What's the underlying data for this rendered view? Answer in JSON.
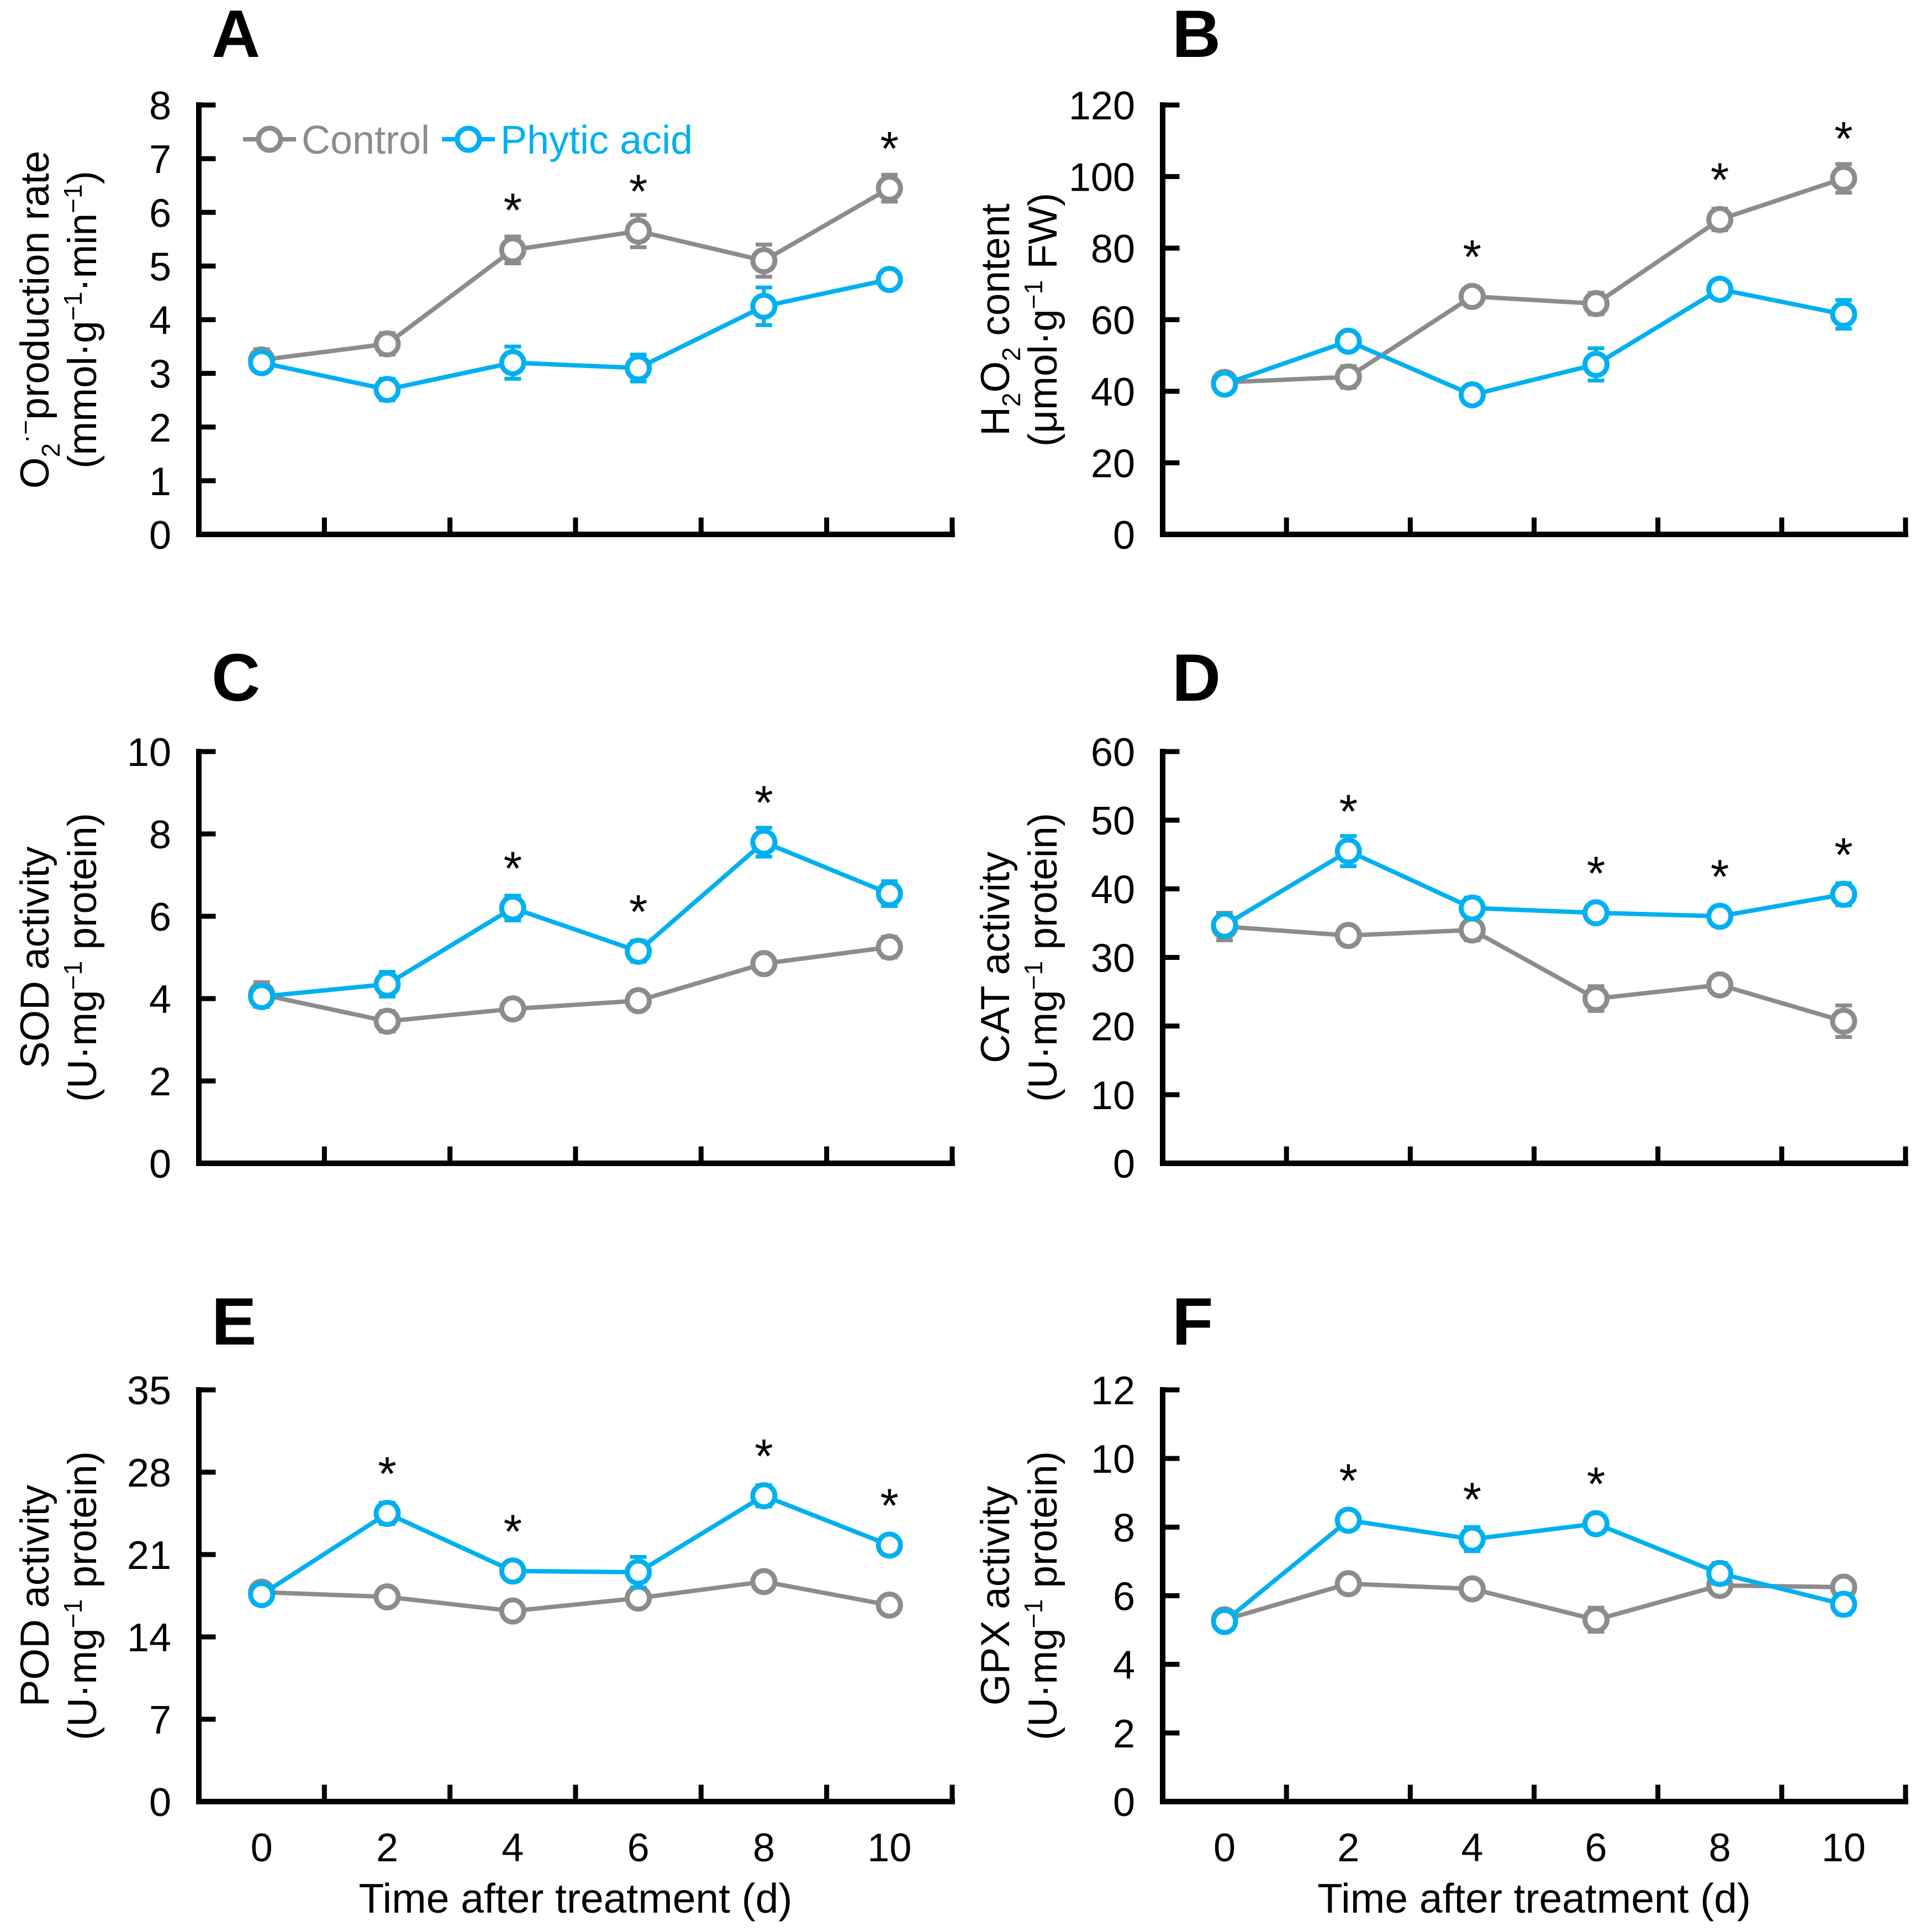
{
  "colors": {
    "control": "#8C8C8C",
    "phytic": "#00B0F0",
    "axis": "#000000",
    "background": "#FFFFFF",
    "asterisk": "#000000"
  },
  "legend": {
    "location": "panel-A-top",
    "items": [
      {
        "label": "Control",
        "series": "control"
      },
      {
        "label": "Phytic acid",
        "series": "phytic"
      }
    ]
  },
  "x_axis": {
    "label": "Time after treatment (d)",
    "categories": [
      "0",
      "2",
      "4",
      "6",
      "8",
      "10"
    ]
  },
  "chart_data": [
    {
      "type": "line",
      "panel": "A",
      "label": "A",
      "ylabel_rich": [
        [
          {
            "t": "O"
          },
          {
            "t": "2",
            "sub": true
          },
          {
            "t": "·−",
            "sup": true
          },
          {
            "t": "production rate"
          }
        ],
        [
          {
            "t": "(mmol·g"
          },
          {
            "t": "−1",
            "sup": true
          },
          {
            "t": "·min"
          },
          {
            "t": "−1",
            "sup": true
          },
          {
            "t": ")"
          }
        ]
      ],
      "ylim": [
        0,
        8
      ],
      "yticks": [
        0,
        1,
        2,
        3,
        4,
        5,
        6,
        7,
        8
      ],
      "x": [
        0,
        2,
        4,
        6,
        8,
        10
      ],
      "series": [
        {
          "name": "Control",
          "key": "control",
          "values": [
            3.25,
            3.55,
            5.3,
            5.65,
            5.1,
            6.45
          ],
          "errors": [
            0.2,
            0.2,
            0.25,
            0.3,
            0.3,
            0.25
          ]
        },
        {
          "name": "Phytic acid",
          "key": "phytic",
          "values": [
            3.2,
            2.7,
            3.2,
            3.1,
            4.25,
            4.75
          ],
          "errors": [
            0.15,
            0.2,
            0.3,
            0.25,
            0.35,
            0.15
          ]
        }
      ],
      "significance_asterisks": [
        {
          "x": 4,
          "above_series": "control"
        },
        {
          "x": 6,
          "above_series": "control"
        },
        {
          "x": 10,
          "above_series": "control"
        }
      ],
      "show_x_tick_labels": false,
      "show_legend": true
    },
    {
      "type": "line",
      "panel": "B",
      "label": "B",
      "ylabel_rich": [
        [
          {
            "t": "H"
          },
          {
            "t": "2",
            "sub": true
          },
          {
            "t": "O"
          },
          {
            "t": "2",
            "sub": true
          },
          {
            "t": " content"
          }
        ],
        [
          {
            "t": "(μmol·g"
          },
          {
            "t": "−1",
            "sup": true
          },
          {
            "t": " FW)"
          }
        ]
      ],
      "ylim": [
        0,
        120
      ],
      "yticks": [
        0,
        20,
        40,
        60,
        80,
        100,
        120
      ],
      "x": [
        0,
        2,
        4,
        6,
        8,
        10
      ],
      "series": [
        {
          "name": "Control",
          "key": "control",
          "values": [
            42.5,
            44,
            66.5,
            64.5,
            88,
            99.5
          ],
          "errors": [
            1.5,
            3,
            2,
            3,
            3,
            4
          ]
        },
        {
          "name": "Phytic acid",
          "key": "phytic",
          "values": [
            42,
            54,
            39,
            47.5,
            68.5,
            61.5
          ],
          "errors": [
            2,
            1.5,
            2,
            4.5,
            1.5,
            4
          ]
        }
      ],
      "significance_asterisks": [
        {
          "x": 4,
          "above_series": "control"
        },
        {
          "x": 8,
          "above_series": "control"
        },
        {
          "x": 10,
          "above_series": "control"
        }
      ],
      "show_x_tick_labels": false,
      "show_legend": false
    },
    {
      "type": "line",
      "panel": "C",
      "label": "C",
      "ylabel_rich": [
        [
          {
            "t": "SOD activity"
          }
        ],
        [
          {
            "t": "(U·mg"
          },
          {
            "t": "−1",
            "sup": true
          },
          {
            "t": " protein)"
          }
        ]
      ],
      "ylim": [
        0,
        10
      ],
      "yticks": [
        0,
        2,
        4,
        6,
        8,
        10
      ],
      "x": [
        0,
        2,
        4,
        6,
        8,
        10
      ],
      "series": [
        {
          "name": "Control",
          "key": "control",
          "values": [
            4.1,
            3.45,
            3.75,
            3.95,
            4.85,
            5.25
          ],
          "errors": [
            0.3,
            0.25,
            0.15,
            0.15,
            0.2,
            0.25
          ]
        },
        {
          "name": "Phytic acid",
          "key": "phytic",
          "values": [
            4.05,
            4.35,
            6.2,
            5.15,
            7.8,
            6.55
          ],
          "errors": [
            0.25,
            0.3,
            0.3,
            0.25,
            0.35,
            0.3
          ]
        }
      ],
      "significance_asterisks": [
        {
          "x": 4,
          "above_series": "phytic"
        },
        {
          "x": 6,
          "above_series": "phytic"
        },
        {
          "x": 8,
          "above_series": "phytic"
        }
      ],
      "show_x_tick_labels": false,
      "show_legend": false
    },
    {
      "type": "line",
      "panel": "D",
      "label": "D",
      "ylabel_rich": [
        [
          {
            "t": "CAT activity"
          }
        ],
        [
          {
            "t": "(U·mg"
          },
          {
            "t": "−1",
            "sup": true
          },
          {
            "t": " protein)"
          }
        ]
      ],
      "ylim": [
        0,
        60
      ],
      "yticks": [
        0,
        10,
        20,
        30,
        40,
        50,
        60
      ],
      "x": [
        0,
        2,
        4,
        6,
        8,
        10
      ],
      "series": [
        {
          "name": "Control",
          "key": "control",
          "values": [
            34.5,
            33.2,
            34,
            24,
            26,
            20.7
          ],
          "errors": [
            2,
            1.3,
            1.5,
            1.8,
            1.3,
            2.3
          ]
        },
        {
          "name": "Phytic acid",
          "key": "phytic",
          "values": [
            34.7,
            45.5,
            37.2,
            36.5,
            36,
            39.2
          ],
          "errors": [
            1.3,
            2.2,
            1.5,
            1.2,
            1.4,
            1.6
          ]
        }
      ],
      "significance_asterisks": [
        {
          "x": 2,
          "above_series": "phytic"
        },
        {
          "x": 6,
          "above_series": "phytic"
        },
        {
          "x": 8,
          "above_series": "phytic"
        },
        {
          "x": 10,
          "above_series": "phytic"
        }
      ],
      "show_x_tick_labels": false,
      "show_legend": false
    },
    {
      "type": "line",
      "panel": "E",
      "label": "E",
      "ylabel_rich": [
        [
          {
            "t": "POD activity"
          }
        ],
        [
          {
            "t": "(U·mg"
          },
          {
            "t": "−1",
            "sup": true
          },
          {
            "t": " protein)"
          }
        ]
      ],
      "ylim": [
        0,
        35
      ],
      "yticks": [
        0,
        7,
        14,
        21,
        28,
        35
      ],
      "x": [
        0,
        2,
        4,
        6,
        8,
        10
      ],
      "series": [
        {
          "name": "Control",
          "key": "control",
          "values": [
            17.8,
            17.4,
            16.2,
            17.3,
            18.7,
            16.7
          ],
          "errors": [
            0.5,
            0.5,
            0.6,
            0.5,
            0.4,
            0.6
          ]
        },
        {
          "name": "Phytic acid",
          "key": "phytic",
          "values": [
            17.6,
            24.5,
            19.6,
            19.5,
            26,
            21.8
          ],
          "errors": [
            0.6,
            0.9,
            0.6,
            1.3,
            0.9,
            0.7
          ]
        }
      ],
      "significance_asterisks": [
        {
          "x": 2,
          "above_series": "phytic"
        },
        {
          "x": 4,
          "above_series": "phytic"
        },
        {
          "x": 8,
          "above_series": "phytic"
        },
        {
          "x": 10,
          "above_series": "phytic"
        }
      ],
      "show_x_tick_labels": true,
      "show_legend": false
    },
    {
      "type": "line",
      "panel": "F",
      "label": "F",
      "ylabel_rich": [
        [
          {
            "t": "GPX activity"
          }
        ],
        [
          {
            "t": "(U·mg"
          },
          {
            "t": "−1",
            "sup": true
          },
          {
            "t": " protein)"
          }
        ]
      ],
      "ylim": [
        0,
        12
      ],
      "yticks": [
        0,
        2,
        4,
        6,
        8,
        10,
        12
      ],
      "x": [
        0,
        2,
        4,
        6,
        8,
        10
      ],
      "series": [
        {
          "name": "Control",
          "key": "control",
          "values": [
            5.3,
            6.35,
            6.2,
            5.3,
            6.3,
            6.25
          ],
          "errors": [
            0.12,
            0.25,
            0.12,
            0.35,
            0.2,
            0.12
          ]
        },
        {
          "name": "Phytic acid",
          "key": "phytic",
          "values": [
            5.25,
            8.2,
            7.65,
            8.1,
            6.65,
            5.75
          ],
          "errors": [
            0.2,
            0.15,
            0.35,
            0.2,
            0.3,
            0.3
          ]
        }
      ],
      "significance_asterisks": [
        {
          "x": 2,
          "above_series": "phytic"
        },
        {
          "x": 4,
          "above_series": "phytic"
        },
        {
          "x": 6,
          "above_series": "phytic"
        }
      ],
      "show_x_tick_labels": true,
      "show_legend": false
    }
  ]
}
